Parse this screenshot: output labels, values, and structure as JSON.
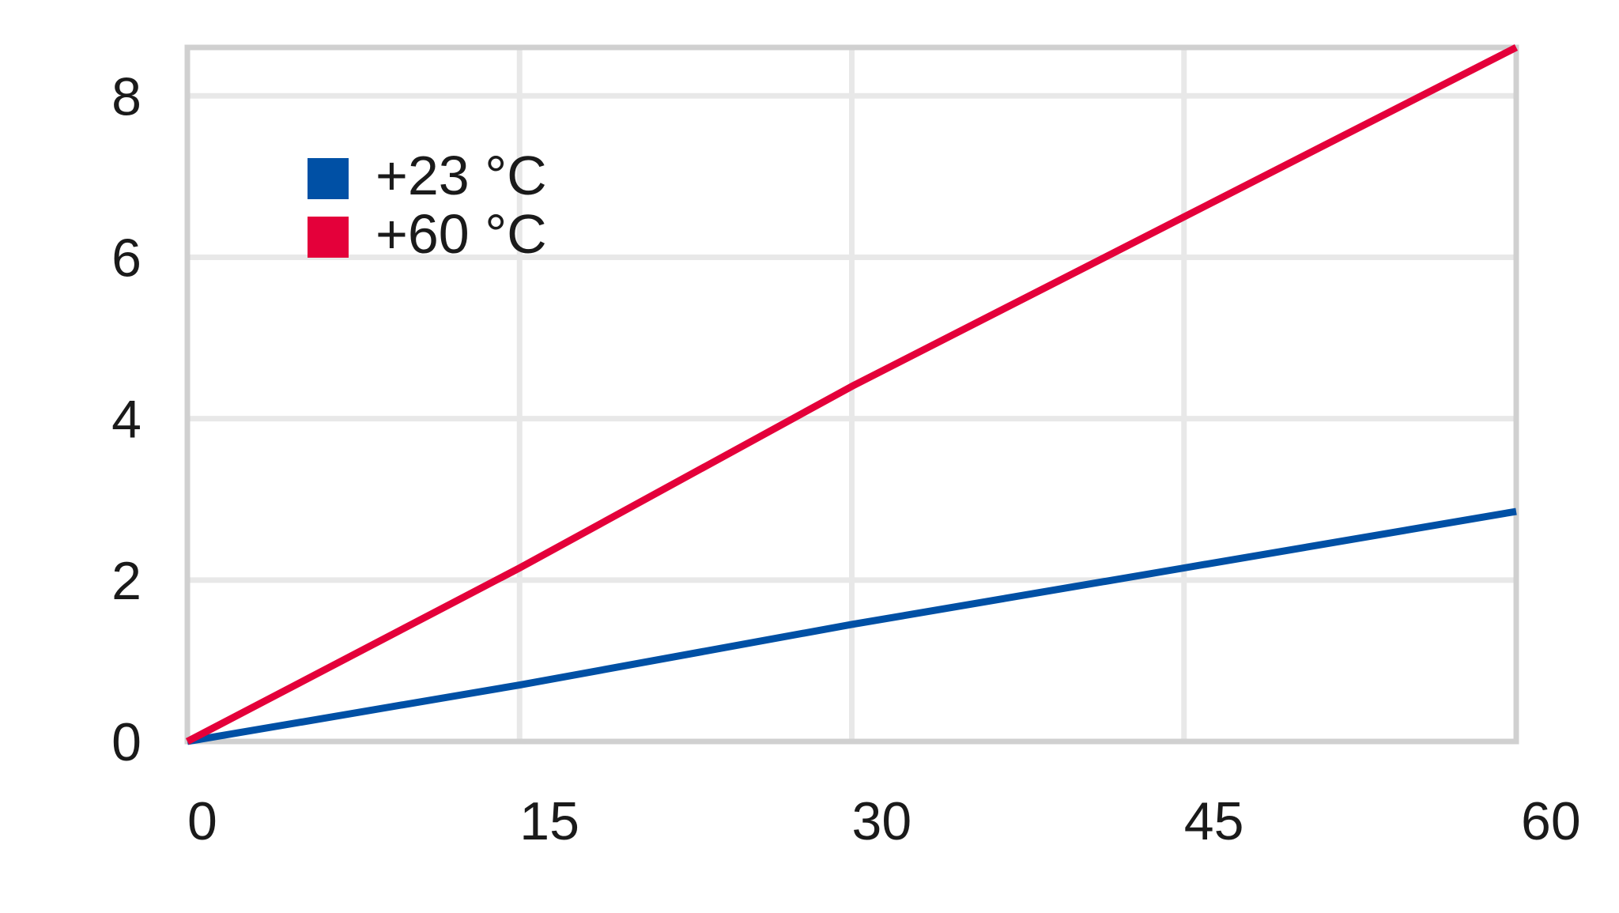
{
  "chart_data": {
    "type": "line",
    "x_ticks": [
      0,
      15,
      30,
      45,
      60
    ],
    "y_ticks": [
      0,
      2,
      4,
      6,
      8
    ],
    "xlim": [
      0,
      60
    ],
    "ylim": [
      0,
      8.6
    ],
    "grid": true,
    "legend_position": "top-left",
    "series": [
      {
        "name": "+23 °C",
        "color": "#0050a5",
        "x": [
          0,
          15,
          30,
          45,
          60
        ],
        "y": [
          0,
          0.7,
          1.45,
          2.15,
          2.85
        ]
      },
      {
        "name": "+60 °C",
        "color": "#e4003a",
        "x": [
          0,
          15,
          30,
          45,
          60
        ],
        "y": [
          0,
          2.15,
          4.4,
          6.5,
          8.6
        ]
      }
    ]
  },
  "colors": {
    "grid": "#e8e8e8",
    "frame": "#d0d0d0",
    "text": "#1a1a1a"
  }
}
